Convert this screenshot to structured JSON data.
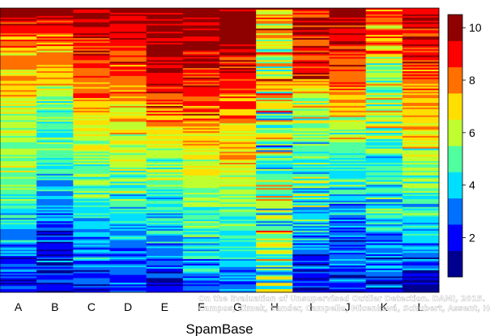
{
  "chart_data": {
    "type": "heatmap",
    "xlabel": "SpamBase",
    "columns": [
      "A",
      "B",
      "C",
      "D",
      "E",
      "F",
      "G",
      "H",
      "I",
      "J",
      "K",
      "L"
    ],
    "value_range": [
      0.5,
      10.5
    ],
    "colorbar": {
      "ticks": [
        2,
        4,
        6,
        8,
        10
      ],
      "levels": [
        1,
        2,
        3,
        4,
        5,
        6,
        7,
        8,
        9,
        10
      ],
      "colors": [
        "#00008f",
        "#0000ff",
        "#0070ff",
        "#00dfff",
        "#50ff9f",
        "#bfff30",
        "#ffdf00",
        "#ff7000",
        "#ff0000",
        "#8f0000"
      ]
    },
    "median_rank_profile": {
      "description_rows_top_to_bottom": 9,
      "A": [
        10,
        8,
        7,
        6,
        6,
        5,
        4,
        3,
        2
      ],
      "B": [
        10,
        8,
        7,
        5,
        5,
        4,
        3,
        2,
        2
      ],
      "C": [
        10,
        9,
        8,
        7,
        6,
        5,
        4,
        3,
        2
      ],
      "D": [
        10,
        9,
        8,
        7,
        6,
        5,
        4,
        3,
        2
      ],
      "E": [
        10,
        10,
        9,
        8,
        6,
        5,
        4,
        3,
        2
      ],
      "F": [
        10,
        10,
        9,
        8,
        7,
        6,
        5,
        4,
        2
      ],
      "G": [
        10,
        10,
        9,
        8,
        7,
        6,
        5,
        4,
        3
      ],
      "H": [
        8,
        6,
        7,
        6,
        5,
        6,
        5,
        6,
        5
      ],
      "I": [
        9,
        9,
        8,
        6,
        5,
        5,
        4,
        3,
        2
      ],
      "J": [
        10,
        9,
        8,
        7,
        5,
        4,
        3,
        3,
        2
      ],
      "K": [
        8,
        8,
        6,
        6,
        5,
        5,
        4,
        3,
        2
      ],
      "L": [
        10,
        9,
        8,
        7,
        6,
        5,
        4,
        3,
        1
      ]
    }
  },
  "watermark": {
    "line1": "On the Evaluation of Unsupervised Outlier Detection. DAMI, 2015.",
    "line2": "Campos, Zimek, Sander, Campello, Micenková, Schubert, Assent, Houle"
  }
}
